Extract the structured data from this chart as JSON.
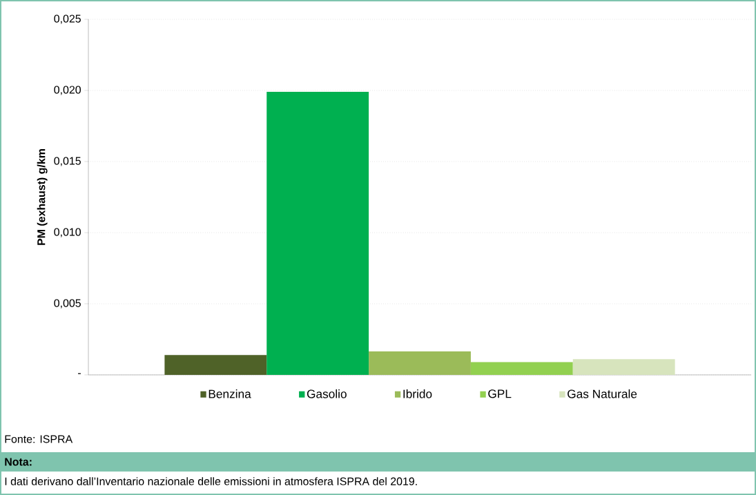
{
  "chart_data": {
    "type": "bar",
    "ylabel": "PM (exhaust) g/km",
    "categories": [
      null
    ],
    "series": [
      {
        "name": "Benzina",
        "color": "#4f6228",
        "values": [
          0.0014
        ]
      },
      {
        "name": "Gasolio",
        "color": "#00b050",
        "values": [
          0.0199
        ]
      },
      {
        "name": "Ibrido",
        "color": "#9bbb59",
        "values": [
          0.00165
        ]
      },
      {
        "name": "GPL",
        "color": "#92d050",
        "values": [
          0.0009
        ]
      },
      {
        "name": "Gas Naturale",
        "color": "#d7e4bd",
        "values": [
          0.0011
        ]
      }
    ],
    "ylim": [
      0,
      0.025
    ],
    "yticks": [
      {
        "value": 0,
        "label": "-"
      },
      {
        "value": 0.005,
        "label": "0,005"
      },
      {
        "value": 0.01,
        "label": "0,010"
      },
      {
        "value": 0.015,
        "label": "0,015"
      },
      {
        "value": 0.02,
        "label": "0,020"
      },
      {
        "value": 0.025,
        "label": "0,025"
      }
    ],
    "grid": "y",
    "legend": "bottom",
    "tick_labels": "y",
    "annotations": [
      "Fonte: ISPRA",
      "Nota:",
      "I dati derivano dall’Inventario nazionale delle emissioni in atmosfera ISPRA del 2019."
    ]
  }
}
